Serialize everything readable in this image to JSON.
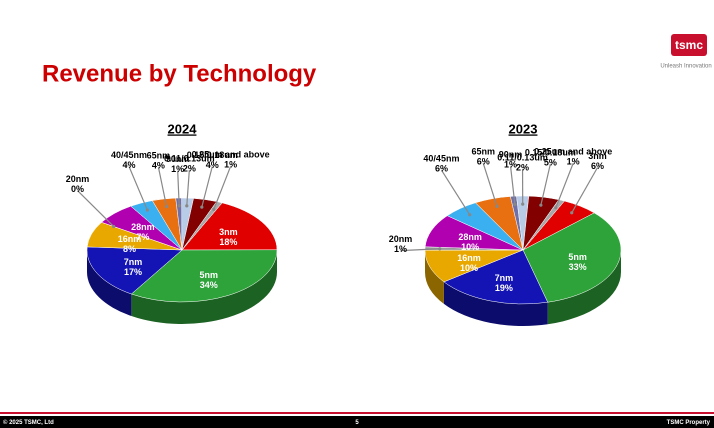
{
  "title": "Revenue by Technology",
  "logo": {
    "name": "tsmc",
    "tagline": "Unleash Innovation"
  },
  "chart_data": [
    {
      "type": "pie",
      "title": "2024",
      "categories": [
        "3nm",
        "5nm",
        "7nm",
        "16nm",
        "20nm",
        "28nm",
        "40/45nm",
        "65nm",
        "90nm",
        "0.11/0.13um",
        "0.15/0.18um",
        "0.25um and above"
      ],
      "values": [
        18,
        34,
        17,
        8,
        0,
        7,
        4,
        4,
        1,
        2,
        4,
        1
      ],
      "value_labels": [
        "18%",
        "34%",
        "17%",
        "8%",
        "0%",
        "7%",
        "4%",
        "4%",
        "1%",
        "2%",
        "4%",
        "1%"
      ],
      "colors": [
        "#e00000",
        "#2ea33a",
        "#1414b4",
        "#e8a800",
        "#9a9a9a",
        "#b000b0",
        "#3ab0f0",
        "#e87010",
        "#7070a8",
        "#b8cce8",
        "#820000",
        "#a8a8a8"
      ]
    },
    {
      "type": "pie",
      "title": "2023",
      "categories": [
        "3nm",
        "5nm",
        "7nm",
        "16nm",
        "20nm",
        "28nm",
        "40/45nm",
        "65nm",
        "90nm",
        "0.11/0.13um",
        "0.15/0.18um",
        "0.25um and above"
      ],
      "values": [
        6,
        33,
        19,
        10,
        1,
        10,
        6,
        6,
        1,
        2,
        5,
        1
      ],
      "value_labels": [
        "6%",
        "33%",
        "19%",
        "10%",
        "1%",
        "10%",
        "6%",
        "6%",
        "1%",
        "2%",
        "5%",
        "1%"
      ],
      "colors": [
        "#e00000",
        "#2ea33a",
        "#1414b4",
        "#e8a800",
        "#9a9a9a",
        "#b000b0",
        "#3ab0f0",
        "#e87010",
        "#7070a8",
        "#b8cce8",
        "#820000",
        "#a8a8a8"
      ]
    }
  ],
  "footer": {
    "left": "© 2025 TSMC, Ltd",
    "page": "5",
    "right": "TSMC Property"
  }
}
